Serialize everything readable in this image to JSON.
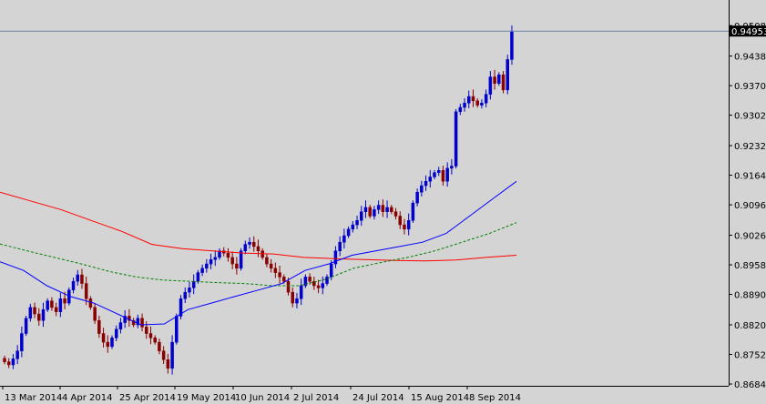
{
  "chart_data": {
    "type": "candlestick",
    "title": "",
    "xlabel": "",
    "ylabel": "",
    "ylim": [
      0.8684,
      0.9525
    ],
    "current_price": 0.94953,
    "current_price_label": "0.94953",
    "y_ticks": [
      "0.95080",
      "0.94380",
      "0.93700",
      "0.93020",
      "0.92320",
      "0.91640",
      "0.90960",
      "0.90260",
      "0.89580",
      "0.88900",
      "0.88200",
      "0.87520",
      "0.86840"
    ],
    "x_ticks": [
      "13 Mar 2014",
      "4 Apr 2014",
      "25 Apr 2014",
      "19 May 2014",
      "10 Jun 2014",
      "2 Jul 2014",
      "24 Jul 2014",
      "15 Aug 2014",
      "8 Sep 2014"
    ],
    "colors": {
      "background": "#d4d4d4",
      "bull": "#0000cc",
      "bear": "#880000",
      "ma_red": "#ff0000",
      "ma_blue": "#0000ff",
      "ma_green": "#008000",
      "price_line": "#6f86a8"
    },
    "candle_closes": [
      0.8735,
      0.8728,
      0.8742,
      0.876,
      0.88,
      0.8835,
      0.886,
      0.8845,
      0.883,
      0.8855,
      0.8875,
      0.886,
      0.885,
      0.888,
      0.887,
      0.89,
      0.892,
      0.8935,
      0.8915,
      0.888,
      0.886,
      0.883,
      0.88,
      0.878,
      0.877,
      0.879,
      0.881,
      0.8825,
      0.884,
      0.883,
      0.882,
      0.8835,
      0.8815,
      0.88,
      0.879,
      0.878,
      0.876,
      0.874,
      0.872,
      0.878,
      0.884,
      0.888,
      0.8895,
      0.8905,
      0.892,
      0.894,
      0.895,
      0.896,
      0.897,
      0.8975,
      0.899,
      0.8985,
      0.8975,
      0.896,
      0.895,
      0.899,
      0.9005,
      0.901,
      0.9,
      0.899,
      0.8975,
      0.896,
      0.895,
      0.894,
      0.893,
      0.892,
      0.8895,
      0.887,
      0.888,
      0.891,
      0.893,
      0.892,
      0.891,
      0.8905,
      0.8915,
      0.893,
      0.896,
      0.899,
      0.901,
      0.9025,
      0.904,
      0.905,
      0.906,
      0.908,
      0.909,
      0.907,
      0.9085,
      0.9095,
      0.908,
      0.909,
      0.908,
      0.907,
      0.905,
      0.904,
      0.906,
      0.91,
      0.9125,
      0.914,
      0.915,
      0.916,
      0.917,
      0.9175,
      0.915,
      0.918,
      0.9185,
      0.931,
      0.932,
      0.933,
      0.9345,
      0.9335,
      0.9325,
      0.933,
      0.935,
      0.939,
      0.9375,
      0.9395,
      0.936,
      0.943,
      0.9495
    ],
    "series": [
      {
        "values": [
          0.9125,
          0.9105,
          0.9085,
          0.906,
          0.9035,
          0.9005,
          0.8995,
          0.899,
          0.8985,
          0.8983,
          0.8975,
          0.8972,
          0.897,
          0.8968,
          0.8967,
          0.8969,
          0.8975,
          0.898
        ]
      },
      {
        "values": [
          0.9006,
          0.899,
          0.8975,
          0.896,
          0.8943,
          0.893,
          0.8923,
          0.892,
          0.8917,
          0.8915,
          0.891,
          0.891,
          0.8925,
          0.895,
          0.8963,
          0.8975,
          0.899,
          0.901,
          0.903,
          0.9055
        ]
      },
      {
        "values": [
          0.8965,
          0.8945,
          0.891,
          0.8885,
          0.887,
          0.8845,
          0.882,
          0.8822,
          0.8855,
          0.887,
          0.8885,
          0.89,
          0.8915,
          0.8945,
          0.896,
          0.898,
          0.899,
          0.9,
          0.901,
          0.903,
          0.907,
          0.911,
          0.915
        ]
      }
    ]
  }
}
